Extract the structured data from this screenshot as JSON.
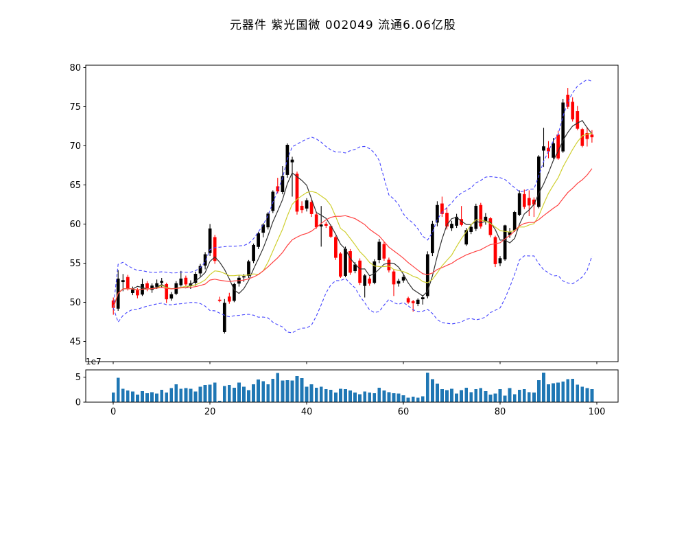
{
  "chart_data": {
    "type": "candlestick",
    "title": "元器件 紫光国微 002049 流通6.06亿股",
    "panels": [
      "price",
      "volume"
    ],
    "legend": "none",
    "grid": false,
    "x_axis": {
      "ticks": [
        0,
        20,
        40,
        60,
        80,
        100
      ],
      "lim": [
        -5.7,
        104.4
      ]
    },
    "price_axis": {
      "ticks": [
        45,
        50,
        55,
        60,
        65,
        70,
        75,
        80
      ],
      "lim": [
        42.4,
        80.3
      ]
    },
    "volume_axis": {
      "ticks": [
        0,
        5
      ],
      "offset_label": "1e7",
      "lim_units": [
        0,
        6.45
      ]
    },
    "overlays": {
      "ma_windows": [
        5,
        10,
        20
      ],
      "bollinger_window": 20,
      "bollinger_k": 2
    },
    "colors": {
      "candle_up": "#000000",
      "candle_down": "#ff0000",
      "ma_short": "#303030",
      "ma_mid": "#cfcf30",
      "ma_long": "#ff4040",
      "bollinger": "#4444ff",
      "volume_bar": "#1f77b4",
      "axis": "#000000",
      "background": "#ffffff"
    },
    "ohlc": [
      [
        50.2,
        50.6,
        48.4,
        49.3
      ],
      [
        49.2,
        54.1,
        48.9,
        53.0
      ],
      [
        52.6,
        53.6,
        51.4,
        52.8
      ],
      [
        53.2,
        53.5,
        51.5,
        51.8
      ],
      [
        51.2,
        52.0,
        50.9,
        51.6
      ],
      [
        51.5,
        51.8,
        50.5,
        50.9
      ],
      [
        51.0,
        53.0,
        50.8,
        52.3
      ],
      [
        52.4,
        52.7,
        51.4,
        51.8
      ],
      [
        51.6,
        52.4,
        51.2,
        52.1
      ],
      [
        52.0,
        52.9,
        51.7,
        52.4
      ],
      [
        52.5,
        53.1,
        51.9,
        52.7
      ],
      [
        52.3,
        52.5,
        49.9,
        50.4
      ],
      [
        50.5,
        51.3,
        50.2,
        51.0
      ],
      [
        51.1,
        52.7,
        50.9,
        52.4
      ],
      [
        52.2,
        54.0,
        52.0,
        53.0
      ],
      [
        53.1,
        53.4,
        52.0,
        52.3
      ],
      [
        52.1,
        52.8,
        51.7,
        52.4
      ],
      [
        52.5,
        53.9,
        52.1,
        53.6
      ],
      [
        53.7,
        54.9,
        53.3,
        54.6
      ],
      [
        54.7,
        56.4,
        54.2,
        56.1
      ],
      [
        56.3,
        60.0,
        55.9,
        59.4
      ],
      [
        58.3,
        58.6,
        54.9,
        55.3
      ],
      [
        50.3,
        50.7,
        50.0,
        50.2
      ],
      [
        46.2,
        50.4,
        46.0,
        49.9
      ],
      [
        50.7,
        51.2,
        49.8,
        50.1
      ],
      [
        50.2,
        52.5,
        50.0,
        52.3
      ],
      [
        52.4,
        53.5,
        52.0,
        53.1
      ],
      [
        53.2,
        53.6,
        52.6,
        53.3
      ],
      [
        53.4,
        55.4,
        53.1,
        55.2
      ],
      [
        55.3,
        57.5,
        55.0,
        57.3
      ],
      [
        57.1,
        59.0,
        56.8,
        58.8
      ],
      [
        58.9,
        60.1,
        58.3,
        59.9
      ],
      [
        59.6,
        61.5,
        59.3,
        61.3
      ],
      [
        61.7,
        64.3,
        61.4,
        64.1
      ],
      [
        64.8,
        65.9,
        63.9,
        64.2
      ],
      [
        64.1,
        67.4,
        63.8,
        66.1
      ],
      [
        66.3,
        70.3,
        65.9,
        70.1
      ],
      [
        67.9,
        68.6,
        63.5,
        68.2
      ],
      [
        66.4,
        66.7,
        61.2,
        61.6
      ],
      [
        62.3,
        62.9,
        61.4,
        61.8
      ],
      [
        62.0,
        63.3,
        61.6,
        63.0
      ],
      [
        62.8,
        63.1,
        60.9,
        61.3
      ],
      [
        61.2,
        61.6,
        59.4,
        59.6
      ],
      [
        59.7,
        62.3,
        57.1,
        59.9
      ],
      [
        60.0,
        60.3,
        59.5,
        59.8
      ],
      [
        59.7,
        59.9,
        58.2,
        58.4
      ],
      [
        58.3,
        58.5,
        55.4,
        55.7
      ],
      [
        56.2,
        56.4,
        53.1,
        53.3
      ],
      [
        53.4,
        57.1,
        53.2,
        56.8
      ],
      [
        56.5,
        56.8,
        53.5,
        53.8
      ],
      [
        54.0,
        55.1,
        53.7,
        54.8
      ],
      [
        55.3,
        55.6,
        52.2,
        52.5
      ],
      [
        52.1,
        53.6,
        50.6,
        53.4
      ],
      [
        53.0,
        53.3,
        52.1,
        52.4
      ],
      [
        52.5,
        55.5,
        52.3,
        55.2
      ],
      [
        55.4,
        58.1,
        55.0,
        57.7
      ],
      [
        57.4,
        57.7,
        55.3,
        55.6
      ],
      [
        55.4,
        55.7,
        53.8,
        54.1
      ],
      [
        53.9,
        54.2,
        50.8,
        52.3
      ],
      [
        52.4,
        53.0,
        52.0,
        52.7
      ],
      [
        52.8,
        53.5,
        52.5,
        53.2
      ],
      [
        50.5,
        50.7,
        49.8,
        50.0
      ],
      [
        50.1,
        50.3,
        48.8,
        49.9
      ],
      [
        49.8,
        50.5,
        49.5,
        50.3
      ],
      [
        50.4,
        50.9,
        49.7,
        50.6
      ],
      [
        50.8,
        56.5,
        50.5,
        56.1
      ],
      [
        56.3,
        60.4,
        55.9,
        60.0
      ],
      [
        60.2,
        62.9,
        59.7,
        62.4
      ],
      [
        62.6,
        63.5,
        60.9,
        61.3
      ],
      [
        61.4,
        62.1,
        59.3,
        59.7
      ],
      [
        59.5,
        60.4,
        59.1,
        60.0
      ],
      [
        59.8,
        61.3,
        59.5,
        60.9
      ],
      [
        60.6,
        62.3,
        59.7,
        59.9
      ],
      [
        57.4,
        59.5,
        57.2,
        59.2
      ],
      [
        59.0,
        60.0,
        58.7,
        59.6
      ],
      [
        59.4,
        62.6,
        59.1,
        62.3
      ],
      [
        62.4,
        62.7,
        59.4,
        59.7
      ],
      [
        60.4,
        61.4,
        59.9,
        60.9
      ],
      [
        60.7,
        60.9,
        58.3,
        58.6
      ],
      [
        58.3,
        58.5,
        54.5,
        54.9
      ],
      [
        55.0,
        55.9,
        54.6,
        55.6
      ],
      [
        55.5,
        59.9,
        55.3,
        59.8
      ],
      [
        58.6,
        59.5,
        58.2,
        59.0
      ],
      [
        59.2,
        61.7,
        59.0,
        61.5
      ],
      [
        61.2,
        64.3,
        61.0,
        63.9
      ],
      [
        63.8,
        64.4,
        61.9,
        62.2
      ],
      [
        63.3,
        64.3,
        61.0,
        62.4
      ],
      [
        63.1,
        63.4,
        60.9,
        62.5
      ],
      [
        62.2,
        68.8,
        62.0,
        68.6
      ],
      [
        69.4,
        72.3,
        67.3,
        69.9
      ],
      [
        69.7,
        70.6,
        68.4,
        69.3
      ],
      [
        68.5,
        71.0,
        68.3,
        70.3
      ],
      [
        71.4,
        71.9,
        68.2,
        68.4
      ],
      [
        69.3,
        76.0,
        69.1,
        75.5
      ],
      [
        76.5,
        77.4,
        74.7,
        75.0
      ],
      [
        75.6,
        76.2,
        73.1,
        73.4
      ],
      [
        74.4,
        75.1,
        72.0,
        72.2
      ],
      [
        72.1,
        72.3,
        69.8,
        70.0
      ],
      [
        71.6,
        72.4,
        69.9,
        70.9
      ],
      [
        71.4,
        72.0,
        70.4,
        71.1
      ]
    ],
    "volumes_e7": [
      1.9,
      4.9,
      2.7,
      2.3,
      2.1,
      1.5,
      2.2,
      1.8,
      2.0,
      1.7,
      2.5,
      1.9,
      2.8,
      3.6,
      2.7,
      2.8,
      2.7,
      2.1,
      3.1,
      3.4,
      3.5,
      3.9,
      0.3,
      3.2,
      3.4,
      2.9,
      3.9,
      3.1,
      2.4,
      3.6,
      4.5,
      4.2,
      3.6,
      4.7,
      5.8,
      4.3,
      4.4,
      4.3,
      5.2,
      4.8,
      3.1,
      3.6,
      2.9,
      3.1,
      2.6,
      2.5,
      1.9,
      2.7,
      2.6,
      2.3,
      1.9,
      1.6,
      2.1,
      1.9,
      1.8,
      2.9,
      2.3,
      2.0,
      1.8,
      1.7,
      1.4,
      0.9,
      1.1,
      0.9,
      1.2,
      5.9,
      4.6,
      3.7,
      2.6,
      2.4,
      2.7,
      1.7,
      2.4,
      2.9,
      2.0,
      2.6,
      2.8,
      2.2,
      1.5,
      1.7,
      2.6,
      1.3,
      2.8,
      1.6,
      2.5,
      2.6,
      2.0,
      1.9,
      4.4,
      5.9,
      3.6,
      3.8,
      3.9,
      4.1,
      4.6,
      4.7,
      3.5,
      3.1,
      2.8,
      2.6
    ]
  }
}
